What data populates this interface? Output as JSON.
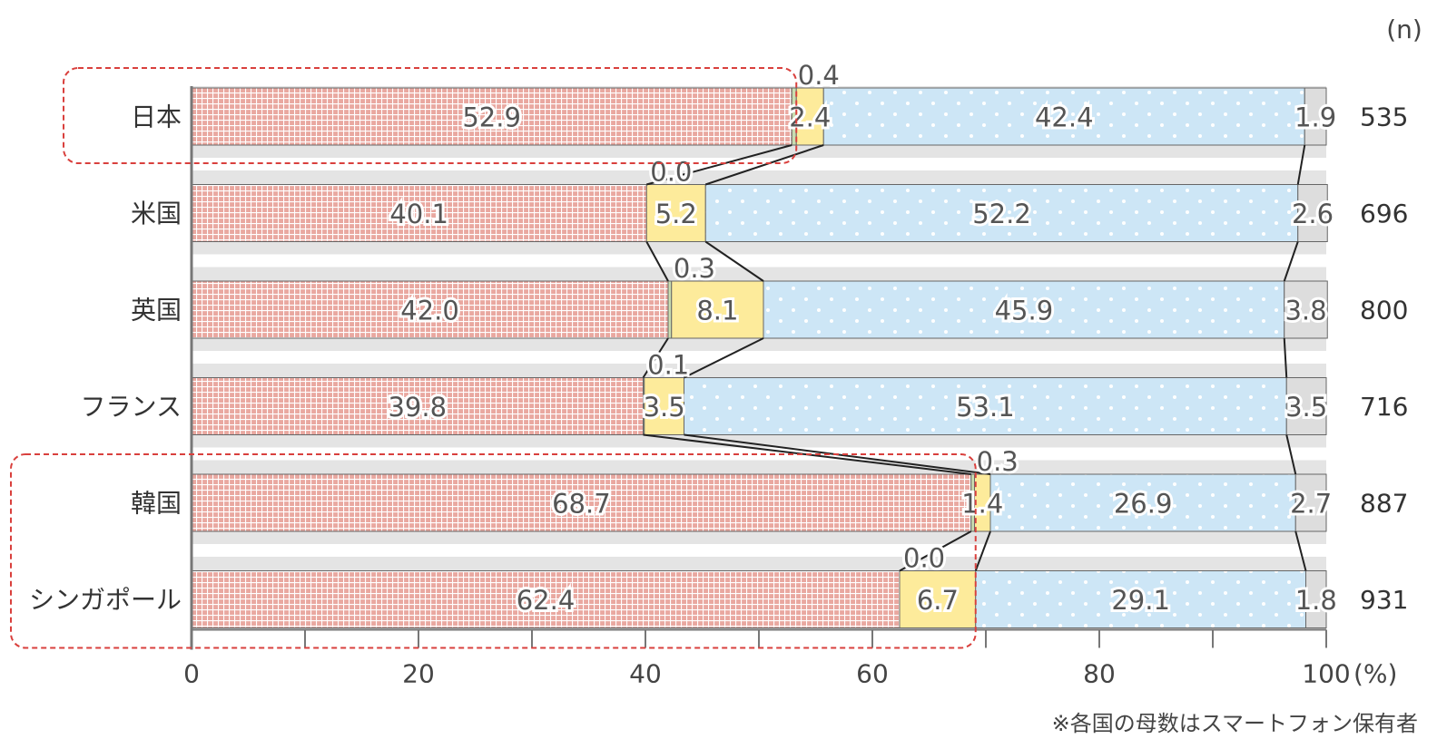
{
  "chart_data": {
    "type": "bar",
    "stacked": true,
    "orientation": "horizontal",
    "categories": [
      "日本",
      "米国",
      "英国",
      "フランス",
      "韓国",
      "シンガポール"
    ],
    "n_header": "(n)",
    "n_values": [
      "535",
      "696",
      "800",
      "716",
      "887",
      "931"
    ],
    "series": [
      {
        "values": [
          52.9,
          40.1,
          42.0,
          39.8,
          68.7,
          62.4
        ],
        "labels": [
          "52.9",
          "40.1",
          "42.0",
          "39.8",
          "68.7",
          "62.4"
        ]
      },
      {
        "values": [
          0.4,
          0.0,
          0.3,
          0.1,
          0.3,
          0.0
        ],
        "labels": [
          "0.4",
          "0.0",
          "0.3",
          "0.1",
          "0.3",
          "0.0"
        ]
      },
      {
        "values": [
          2.4,
          5.2,
          8.1,
          3.5,
          1.4,
          6.7
        ],
        "labels": [
          "2.4",
          "5.2",
          "8.1",
          "3.5",
          "1.4",
          "6.7"
        ]
      },
      {
        "values": [
          42.4,
          52.2,
          45.9,
          53.1,
          26.9,
          29.1
        ],
        "labels": [
          "42.4",
          "52.2",
          "45.9",
          "53.1",
          "26.9",
          "29.1"
        ]
      },
      {
        "values": [
          1.9,
          2.6,
          3.8,
          3.5,
          2.7,
          1.8
        ],
        "labels": [
          "1.9",
          "2.6",
          "3.8",
          "3.5",
          "2.7",
          "1.8"
        ]
      }
    ],
    "xlim": [
      0,
      100
    ],
    "x_ticks": [
      "0",
      "20",
      "40",
      "60",
      "80",
      "100"
    ],
    "x_unit": "(%)",
    "note": "※各国の母数はスマートフォン保有者",
    "highlighted_categories": [
      "日本",
      "韓国",
      "シンガポール"
    ],
    "colors": {
      "series1": "#e9a8a0",
      "series1_grid": "#ffffff",
      "series2": "#c9ddb0",
      "series3": "#fdeb9b",
      "series4": "#cde6f6",
      "series4_dots": "#ffffff",
      "series5": "#dddddd",
      "highlight_box": "#d9403d",
      "connector": "#222222"
    }
  }
}
